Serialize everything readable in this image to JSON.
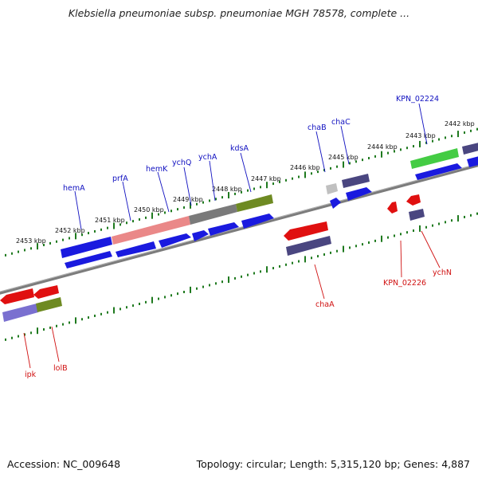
{
  "title": "Klebsiella pneumoniae subsp. pneumoniae MGH 78578, complete ...",
  "footer": {
    "accession": "Accession: NC_009648",
    "summary": "Topology: circular; Length: 5,315,120 bp; Genes: 4,887"
  },
  "colors": {
    "backbone": "#808080",
    "tick_dots": "#1f7a1f",
    "blue_gene": "#1a1adf",
    "navy_gene": "#4a4680",
    "red_gene": "#e01010",
    "pink_gene": "#ea8888",
    "gray_gene": "#7a7a7a",
    "olive_gene": "#6e8a22",
    "green_gene": "#44cc44",
    "light_gray_gene": "#c0c0c0",
    "violet_gene": "#7a70d0",
    "label_blue": "#1010c0",
    "label_red": "#d01010"
  },
  "ticks": [
    "2442 kbp",
    "2443 kbp",
    "2444 kbp",
    "2445 kbp",
    "2446 kbp",
    "2447 kbp",
    "2448 kbp",
    "2449 kbp",
    "2450 kbp",
    "2451 kbp",
    "2452 kbp",
    "2453 kbp"
  ],
  "gene_labels": {
    "hemA": "hemA",
    "prfA": "prfA",
    "hemK": "hemK",
    "ychQ": "ychQ",
    "ychA": "ychA",
    "kdsA": "kdsA",
    "chaB": "chaB",
    "chaC": "chaC",
    "kpn02224": "KPN_02224",
    "chaA": "chaA",
    "kpn02226": "KPN_02226",
    "ychN": "ychN",
    "ipk": "ipk",
    "lolB": "lolB"
  }
}
